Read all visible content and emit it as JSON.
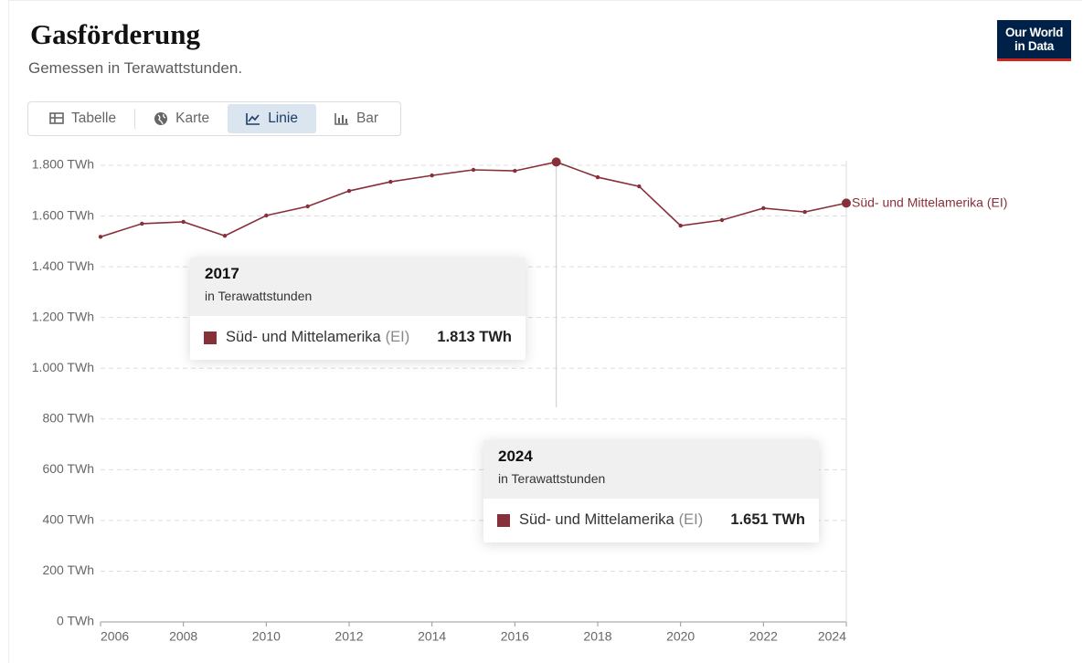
{
  "chart_data": {
    "type": "line",
    "title": "Gasförderung",
    "subtitle": "Gemessen in Terawattstunden.",
    "tabs": [
      "Tabelle",
      "Karte",
      "Linie",
      "Bar"
    ],
    "active_tab": "Linie",
    "logo": [
      "Our World",
      "in Data"
    ],
    "tooltip_unit": "in Terawattstunden",
    "x": [
      2006,
      2007,
      2008,
      2009,
      2010,
      2011,
      2012,
      2013,
      2014,
      2015,
      2016,
      2017,
      2018,
      2019,
      2020,
      2021,
      2022,
      2023,
      2024
    ],
    "series": [
      {
        "name": "Süd- und Mittelamerika",
        "source": "(EI)",
        "color": "#883039",
        "values": [
          1518,
          1570,
          1577,
          1522,
          1602,
          1638,
          1699,
          1735,
          1760,
          1782,
          1778,
          1813,
          1753,
          1717,
          1562,
          1584,
          1631,
          1616,
          1651
        ],
        "value_labels": [
          null,
          null,
          null,
          null,
          null,
          null,
          null,
          null,
          null,
          null,
          null,
          "1.813 TWh",
          null,
          null,
          null,
          null,
          null,
          null,
          "1.651 TWh"
        ]
      }
    ],
    "xlim": [
      2006,
      2024
    ],
    "xticks": [
      2006,
      2008,
      2010,
      2012,
      2014,
      2016,
      2018,
      2020,
      2022,
      2024
    ],
    "ylim": [
      0,
      1800
    ],
    "yticks": [
      {
        "value": 0,
        "label": "0 TWh"
      },
      {
        "value": 200,
        "label": "200 TWh"
      },
      {
        "value": 400,
        "label": "400 TWh"
      },
      {
        "value": 600,
        "label": "600 TWh"
      },
      {
        "value": 800,
        "label": "800 TWh"
      },
      {
        "value": 1000,
        "label": "1.000 TWh"
      },
      {
        "value": 1200,
        "label": "1.200 TWh"
      },
      {
        "value": 1400,
        "label": "1.400 TWh"
      },
      {
        "value": 1600,
        "label": "1.600 TWh"
      },
      {
        "value": 1800,
        "label": "1.800 TWh"
      }
    ],
    "grid": true
  }
}
